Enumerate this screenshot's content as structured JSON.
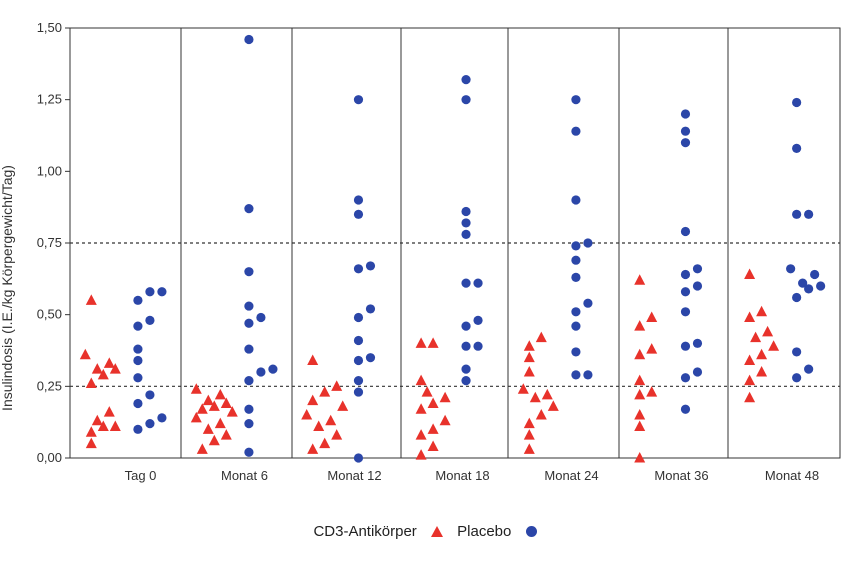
{
  "chart_data": {
    "type": "scatter",
    "ylabel": "Insulindosis (I.E./kg Körpergewicht/Tag)",
    "ylim": [
      0,
      1.5
    ],
    "yticks": [
      "0,00",
      "0,25",
      "0,50",
      "0,75",
      "1,00",
      "1,25",
      "1,50"
    ],
    "categories": [
      "Tag 0",
      "Monat 6",
      "Monat 12",
      "Monat 18",
      "Monat 24",
      "Monat 36",
      "Monat 48"
    ],
    "reference_lines": [
      0.25,
      0.75
    ],
    "colors": {
      "cd3": "#e8322b",
      "placebo": "#2b46a8"
    },
    "series": [
      {
        "name": "CD3-Antikörper",
        "marker": "triangle",
        "values": [
          [
            0.55,
            0.36,
            0.33,
            0.31,
            0.31,
            0.29,
            0.26,
            0.16,
            0.13,
            0.11,
            0.11,
            0.09,
            0.05
          ],
          [
            0.24,
            0.22,
            0.2,
            0.19,
            0.18,
            0.17,
            0.16,
            0.14,
            0.12,
            0.1,
            0.08,
            0.06,
            0.03
          ],
          [
            0.34,
            0.25,
            0.23,
            0.2,
            0.18,
            0.15,
            0.13,
            0.11,
            0.08,
            0.05,
            0.03
          ],
          [
            0.4,
            0.4,
            0.27,
            0.23,
            0.21,
            0.19,
            0.17,
            0.13,
            0.1,
            0.08,
            0.04,
            0.01
          ],
          [
            0.42,
            0.39,
            0.35,
            0.3,
            0.24,
            0.22,
            0.21,
            0.18,
            0.15,
            0.12,
            0.08,
            0.03
          ],
          [
            0.62,
            0.49,
            0.46,
            0.38,
            0.36,
            0.27,
            0.23,
            0.22,
            0.15,
            0.11,
            0.0
          ],
          [
            0.64,
            0.51,
            0.49,
            0.44,
            0.42,
            0.39,
            0.36,
            0.34,
            0.3,
            0.27,
            0.21
          ]
        ]
      },
      {
        "name": "Placebo",
        "marker": "circle",
        "values": [
          [
            0.58,
            0.58,
            0.55,
            0.48,
            0.46,
            0.38,
            0.34,
            0.28,
            0.22,
            0.19,
            0.14,
            0.12,
            0.1
          ],
          [
            1.46,
            0.87,
            0.65,
            0.53,
            0.49,
            0.47,
            0.38,
            0.31,
            0.3,
            0.27,
            0.17,
            0.12,
            0.02
          ],
          [
            1.25,
            0.9,
            0.85,
            0.67,
            0.66,
            0.52,
            0.49,
            0.41,
            0.35,
            0.34,
            0.27,
            0.23,
            0.0
          ],
          [
            1.32,
            1.25,
            0.86,
            0.82,
            0.78,
            0.61,
            0.61,
            0.48,
            0.46,
            0.39,
            0.39,
            0.31,
            0.27
          ],
          [
            1.25,
            1.14,
            0.9,
            0.75,
            0.74,
            0.69,
            0.63,
            0.54,
            0.51,
            0.46,
            0.37,
            0.29,
            0.29
          ],
          [
            1.2,
            1.14,
            1.1,
            0.79,
            0.66,
            0.64,
            0.6,
            0.58,
            0.51,
            0.4,
            0.39,
            0.3,
            0.28,
            0.17
          ],
          [
            1.24,
            1.08,
            0.85,
            0.85,
            0.66,
            0.64,
            0.61,
            0.6,
            0.59,
            0.56,
            0.37,
            0.31,
            0.28
          ]
        ]
      }
    ],
    "legend_text": {
      "cd3": "CD3-Antikörper",
      "placebo": "Placebo"
    }
  }
}
